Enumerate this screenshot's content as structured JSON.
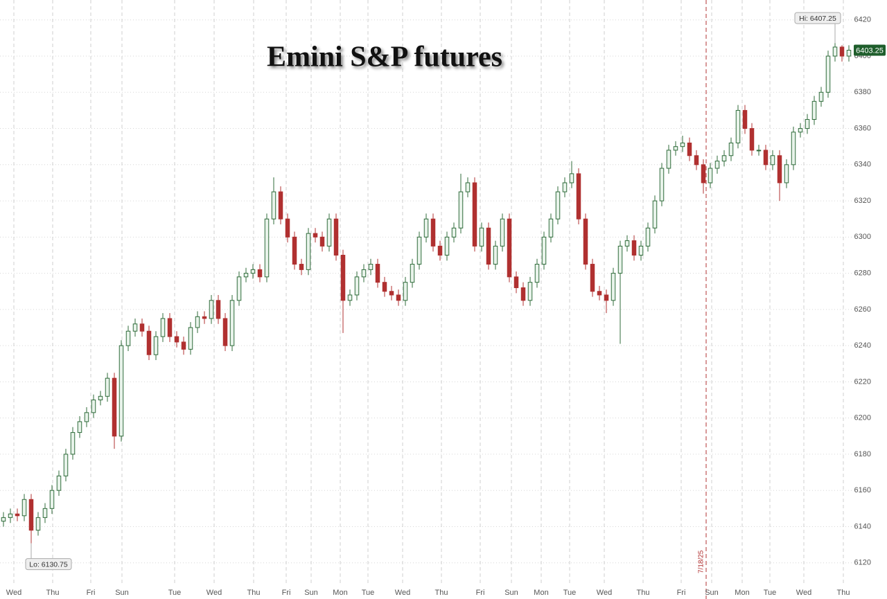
{
  "chart_data": {
    "type": "candlestick",
    "title": "Emini S&P futures",
    "series": [
      {
        "name": "Emini S&P futures",
        "up_color": "#2f6b3a",
        "down_color": "#b03030",
        "open": [
          6143,
          6145,
          6147,
          6146,
          6155,
          6138,
          6145,
          6150,
          6160,
          6168,
          6180,
          6192,
          6198,
          6203,
          6210,
          6212,
          6222,
          6190,
          6240,
          6248,
          6252,
          6248,
          6235,
          6245,
          6255,
          6245,
          6242,
          6238,
          6250,
          6256,
          6255,
          6265,
          6255,
          6240,
          6265,
          6278,
          6280,
          6282,
          6278,
          6310,
          6325,
          6310,
          6300,
          6285,
          6282,
          6302,
          6300,
          6295,
          6310,
          6290,
          6265,
          6268,
          6278,
          6282,
          6285,
          6275,
          6270,
          6268,
          6265,
          6275,
          6285,
          6300,
          6310,
          6295,
          6290,
          6300,
          6305,
          6325,
          6330,
          6295,
          6305,
          6285,
          6295,
          6310,
          6278,
          6272,
          6265,
          6275,
          6285,
          6300,
          6310,
          6325,
          6330,
          6335,
          6310,
          6285,
          6270,
          6268,
          6265,
          6280,
          6295,
          6298,
          6290,
          6295,
          6305,
          6320,
          6338,
          6348,
          6350,
          6352,
          6345,
          6340,
          6330,
          6338,
          6342,
          6345,
          6352,
          6370,
          6360,
          6348,
          6348,
          6340,
          6345,
          6330,
          6340,
          6358,
          6360,
          6365,
          6375,
          6380,
          6400,
          6405,
          6400
        ],
        "high": [
          6148,
          6150,
          6150,
          6158,
          6158,
          6148,
          6153,
          6163,
          6171,
          6183,
          6195,
          6201,
          6206,
          6213,
          6215,
          6225,
          6225,
          6243,
          6251,
          6255,
          6255,
          6251,
          6248,
          6258,
          6258,
          6248,
          6245,
          6253,
          6259,
          6259,
          6268,
          6268,
          6258,
          6268,
          6281,
          6283,
          6285,
          6285,
          6313,
          6333,
          6328,
          6313,
          6303,
          6288,
          6305,
          6305,
          6303,
          6313,
          6313,
          6293,
          6271,
          6281,
          6285,
          6288,
          6288,
          6278,
          6273,
          6271,
          6278,
          6288,
          6303,
          6313,
          6313,
          6298,
          6303,
          6308,
          6335,
          6333,
          6333,
          6308,
          6308,
          6298,
          6313,
          6313,
          6281,
          6275,
          6278,
          6288,
          6303,
          6313,
          6328,
          6333,
          6342,
          6338,
          6313,
          6288,
          6273,
          6271,
          6283,
          6298,
          6301,
          6301,
          6298,
          6308,
          6323,
          6341,
          6351,
          6353,
          6356,
          6355,
          6348,
          6343,
          6341,
          6345,
          6348,
          6355,
          6373,
          6373,
          6363,
          6351,
          6351,
          6348,
          6348,
          6343,
          6361,
          6363,
          6368,
          6378,
          6383,
          6403,
          6407.25,
          6406,
          6406
        ],
        "low": [
          6140,
          6142,
          6143,
          6143,
          6130.75,
          6135,
          6142,
          6147,
          6157,
          6165,
          6177,
          6189,
          6195,
          6200,
          6207,
          6209,
          6183,
          6187,
          6237,
          6245,
          6245,
          6232,
          6232,
          6242,
          6242,
          6239,
          6235,
          6235,
          6247,
          6252,
          6252,
          6252,
          6237,
          6237,
          6262,
          6275,
          6277,
          6275,
          6275,
          6307,
          6307,
          6297,
          6282,
          6279,
          6279,
          6297,
          6292,
          6292,
          6287,
          6247,
          6262,
          6265,
          6275,
          6279,
          6272,
          6267,
          6265,
          6262,
          6262,
          6272,
          6282,
          6297,
          6292,
          6287,
          6287,
          6297,
          6302,
          6322,
          6292,
          6292,
          6282,
          6282,
          6292,
          6275,
          6269,
          6262,
          6262,
          6272,
          6282,
          6297,
          6307,
          6322,
          6327,
          6307,
          6282,
          6267,
          6265,
          6258,
          6262,
          6241,
          6292,
          6287,
          6287,
          6292,
          6302,
          6317,
          6335,
          6345,
          6347,
          6342,
          6337,
          6324,
          6327,
          6335,
          6339,
          6342,
          6349,
          6357,
          6345,
          6345,
          6337,
          6337,
          6320,
          6327,
          6337,
          6355,
          6357,
          6362,
          6372,
          6377,
          6397,
          6397,
          6397
        ],
        "close": [
          6145,
          6147,
          6146,
          6155,
          6138,
          6145,
          6150,
          6160,
          6168,
          6180,
          6192,
          6198,
          6203,
          6210,
          6212,
          6222,
          6190,
          6240,
          6248,
          6252,
          6248,
          6235,
          6245,
          6255,
          6245,
          6242,
          6238,
          6250,
          6256,
          6255,
          6265,
          6255,
          6240,
          6265,
          6278,
          6280,
          6282,
          6278,
          6310,
          6325,
          6310,
          6300,
          6285,
          6282,
          6302,
          6300,
          6295,
          6310,
          6290,
          6265,
          6268,
          6278,
          6282,
          6285,
          6275,
          6270,
          6268,
          6265,
          6275,
          6285,
          6300,
          6310,
          6295,
          6290,
          6300,
          6305,
          6325,
          6330,
          6295,
          6305,
          6285,
          6295,
          6310,
          6278,
          6272,
          6265,
          6275,
          6285,
          6300,
          6310,
          6325,
          6330,
          6335,
          6310,
          6285,
          6270,
          6268,
          6265,
          6280,
          6295,
          6298,
          6290,
          6295,
          6305,
          6320,
          6338,
          6348,
          6350,
          6352,
          6345,
          6340,
          6330,
          6338,
          6342,
          6345,
          6352,
          6370,
          6360,
          6348,
          6348,
          6340,
          6345,
          6330,
          6340,
          6358,
          6360,
          6365,
          6375,
          6380,
          6400,
          6405,
          6400,
          6403.25
        ],
        "last_label": "6403.25"
      }
    ],
    "annotations": [
      {
        "text": "Hi: 6407.25",
        "value": 6407.25,
        "x": 120.5
      },
      {
        "text": "Lo: 6130.75",
        "value": 6130.75,
        "x": 4.5
      }
    ],
    "marker": {
      "x": 101.9,
      "label": "7/18/25",
      "color": "#b03030"
    },
    "xlim": [
      0,
      123
    ],
    "xticks": [
      {
        "value": 2.0,
        "label": "Wed"
      },
      {
        "value": 7.6,
        "label": "Thu"
      },
      {
        "value": 13.1,
        "label": "Fri"
      },
      {
        "value": 17.6,
        "label": "Sun"
      },
      {
        "value": 25.2,
        "label": "Tue"
      },
      {
        "value": 30.9,
        "label": "Wed"
      },
      {
        "value": 36.6,
        "label": "Thu"
      },
      {
        "value": 41.3,
        "label": "Fri"
      },
      {
        "value": 44.9,
        "label": "Sun"
      },
      {
        "value": 49.1,
        "label": "Mon"
      },
      {
        "value": 53.1,
        "label": "Tue"
      },
      {
        "value": 58.1,
        "label": "Wed"
      },
      {
        "value": 63.7,
        "label": "Thu"
      },
      {
        "value": 69.3,
        "label": "Fri"
      },
      {
        "value": 73.8,
        "label": "Sun"
      },
      {
        "value": 78.1,
        "label": "Mon"
      },
      {
        "value": 82.2,
        "label": "Tue"
      },
      {
        "value": 87.2,
        "label": "Wed"
      },
      {
        "value": 92.8,
        "label": "Thu"
      },
      {
        "value": 98.3,
        "label": "Fri"
      },
      {
        "value": 102.7,
        "label": "Sun"
      },
      {
        "value": 107.1,
        "label": "Mon"
      },
      {
        "value": 111.1,
        "label": "Tue"
      },
      {
        "value": 116.0,
        "label": "Wed"
      },
      {
        "value": 121.7,
        "label": "Thu"
      }
    ],
    "ylim": [
      6100,
      6431
    ],
    "yticks": [
      6120,
      6140,
      6160,
      6180,
      6200,
      6220,
      6240,
      6260,
      6280,
      6300,
      6320,
      6340,
      6360,
      6380,
      6400,
      6420
    ],
    "grid": true
  }
}
